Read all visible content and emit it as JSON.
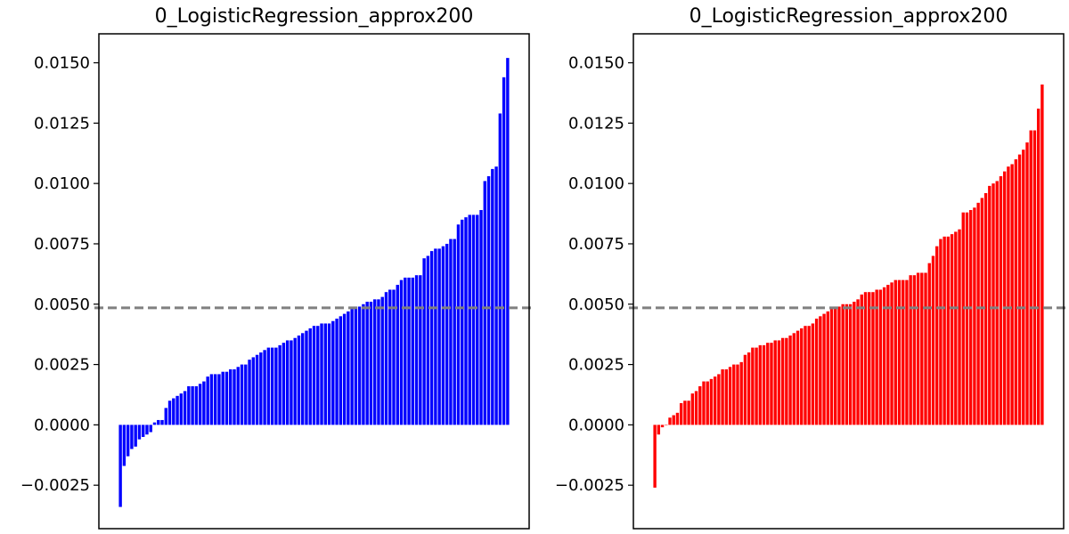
{
  "chart_data": [
    {
      "type": "bar",
      "title": "0_LogisticRegression_approx200",
      "xlabel": "",
      "ylabel": "",
      "ylim": [
        -0.0043,
        0.0162
      ],
      "yticks": [
        -0.0025,
        0.0,
        0.0025,
        0.005,
        0.0075,
        0.01,
        0.0125,
        0.015
      ],
      "ytick_labels": [
        "−0.0025",
        "0.0000",
        "0.0025",
        "0.0050",
        "0.0075",
        "0.0100",
        "0.0125",
        "0.0150"
      ],
      "xticks_visible": false,
      "grid": false,
      "bar_color": "#0000ff",
      "reference_line": {
        "y": 0.00485,
        "style": "dashed",
        "color": "#808080"
      },
      "values": [
        -0.0034,
        -0.0017,
        -0.0013,
        -0.001,
        -0.0009,
        -0.0006,
        -0.0005,
        -0.0004,
        -0.0003,
        0.0001,
        0.0002,
        0.0002,
        0.0007,
        0.001,
        0.0011,
        0.0012,
        0.0013,
        0.0014,
        0.0016,
        0.0016,
        0.0016,
        0.0017,
        0.0018,
        0.002,
        0.0021,
        0.0021,
        0.0021,
        0.0022,
        0.0022,
        0.0023,
        0.0023,
        0.0024,
        0.0025,
        0.0025,
        0.0027,
        0.0028,
        0.0029,
        0.003,
        0.0031,
        0.0032,
        0.0032,
        0.0032,
        0.0033,
        0.0034,
        0.0035,
        0.0035,
        0.0036,
        0.0037,
        0.0038,
        0.0039,
        0.004,
        0.0041,
        0.0041,
        0.0042,
        0.0042,
        0.0042,
        0.0043,
        0.0044,
        0.0045,
        0.0046,
        0.0047,
        0.0048,
        0.0049,
        0.0049,
        0.005,
        0.0051,
        0.0051,
        0.0052,
        0.0052,
        0.0053,
        0.0055,
        0.0056,
        0.0056,
        0.0058,
        0.006,
        0.0061,
        0.0061,
        0.0061,
        0.0062,
        0.0062,
        0.0069,
        0.007,
        0.0072,
        0.0073,
        0.0073,
        0.0074,
        0.0075,
        0.0077,
        0.0077,
        0.0083,
        0.0085,
        0.0086,
        0.0087,
        0.0087,
        0.0087,
        0.0089,
        0.0101,
        0.0103,
        0.0106,
        0.0107,
        0.0129,
        0.0144,
        0.0152
      ]
    },
    {
      "type": "bar",
      "title": "0_LogisticRegression_approx200",
      "xlabel": "",
      "ylabel": "",
      "ylim": [
        -0.0043,
        0.0162
      ],
      "yticks": [
        -0.0025,
        0.0,
        0.0025,
        0.005,
        0.0075,
        0.01,
        0.0125,
        0.015
      ],
      "ytick_labels": [
        "−0.0025",
        "0.0000",
        "0.0025",
        "0.0050",
        "0.0075",
        "0.0100",
        "0.0125",
        "0.0150"
      ],
      "xticks_visible": false,
      "grid": false,
      "bar_color": "#ff0000",
      "reference_line": {
        "y": 0.00485,
        "style": "dashed",
        "color": "#808080"
      },
      "values": [
        -0.0026,
        -0.0004,
        -0.0001,
        0.0,
        0.0003,
        0.0004,
        0.0005,
        0.0009,
        0.001,
        0.001,
        0.0013,
        0.0014,
        0.0016,
        0.0018,
        0.0018,
        0.0019,
        0.002,
        0.0021,
        0.0023,
        0.0023,
        0.0024,
        0.0025,
        0.0025,
        0.0026,
        0.0029,
        0.003,
        0.0032,
        0.0032,
        0.0033,
        0.0033,
        0.0034,
        0.0034,
        0.0035,
        0.0035,
        0.0036,
        0.0036,
        0.0037,
        0.0038,
        0.0039,
        0.004,
        0.0041,
        0.0041,
        0.0042,
        0.0044,
        0.0045,
        0.0046,
        0.0047,
        0.0048,
        0.0049,
        0.0049,
        0.005,
        0.005,
        0.005,
        0.0051,
        0.0052,
        0.0054,
        0.0055,
        0.0055,
        0.0055,
        0.0056,
        0.0056,
        0.0057,
        0.0058,
        0.0059,
        0.006,
        0.006,
        0.006,
        0.006,
        0.0062,
        0.0062,
        0.0063,
        0.0063,
        0.0063,
        0.0067,
        0.007,
        0.0074,
        0.0077,
        0.0078,
        0.0078,
        0.0079,
        0.008,
        0.0081,
        0.0088,
        0.0088,
        0.0089,
        0.009,
        0.0092,
        0.0094,
        0.0096,
        0.0099,
        0.01,
        0.0101,
        0.0103,
        0.0105,
        0.0107,
        0.0108,
        0.011,
        0.0112,
        0.0114,
        0.0117,
        0.0122,
        0.0122,
        0.0131,
        0.0141
      ]
    }
  ]
}
